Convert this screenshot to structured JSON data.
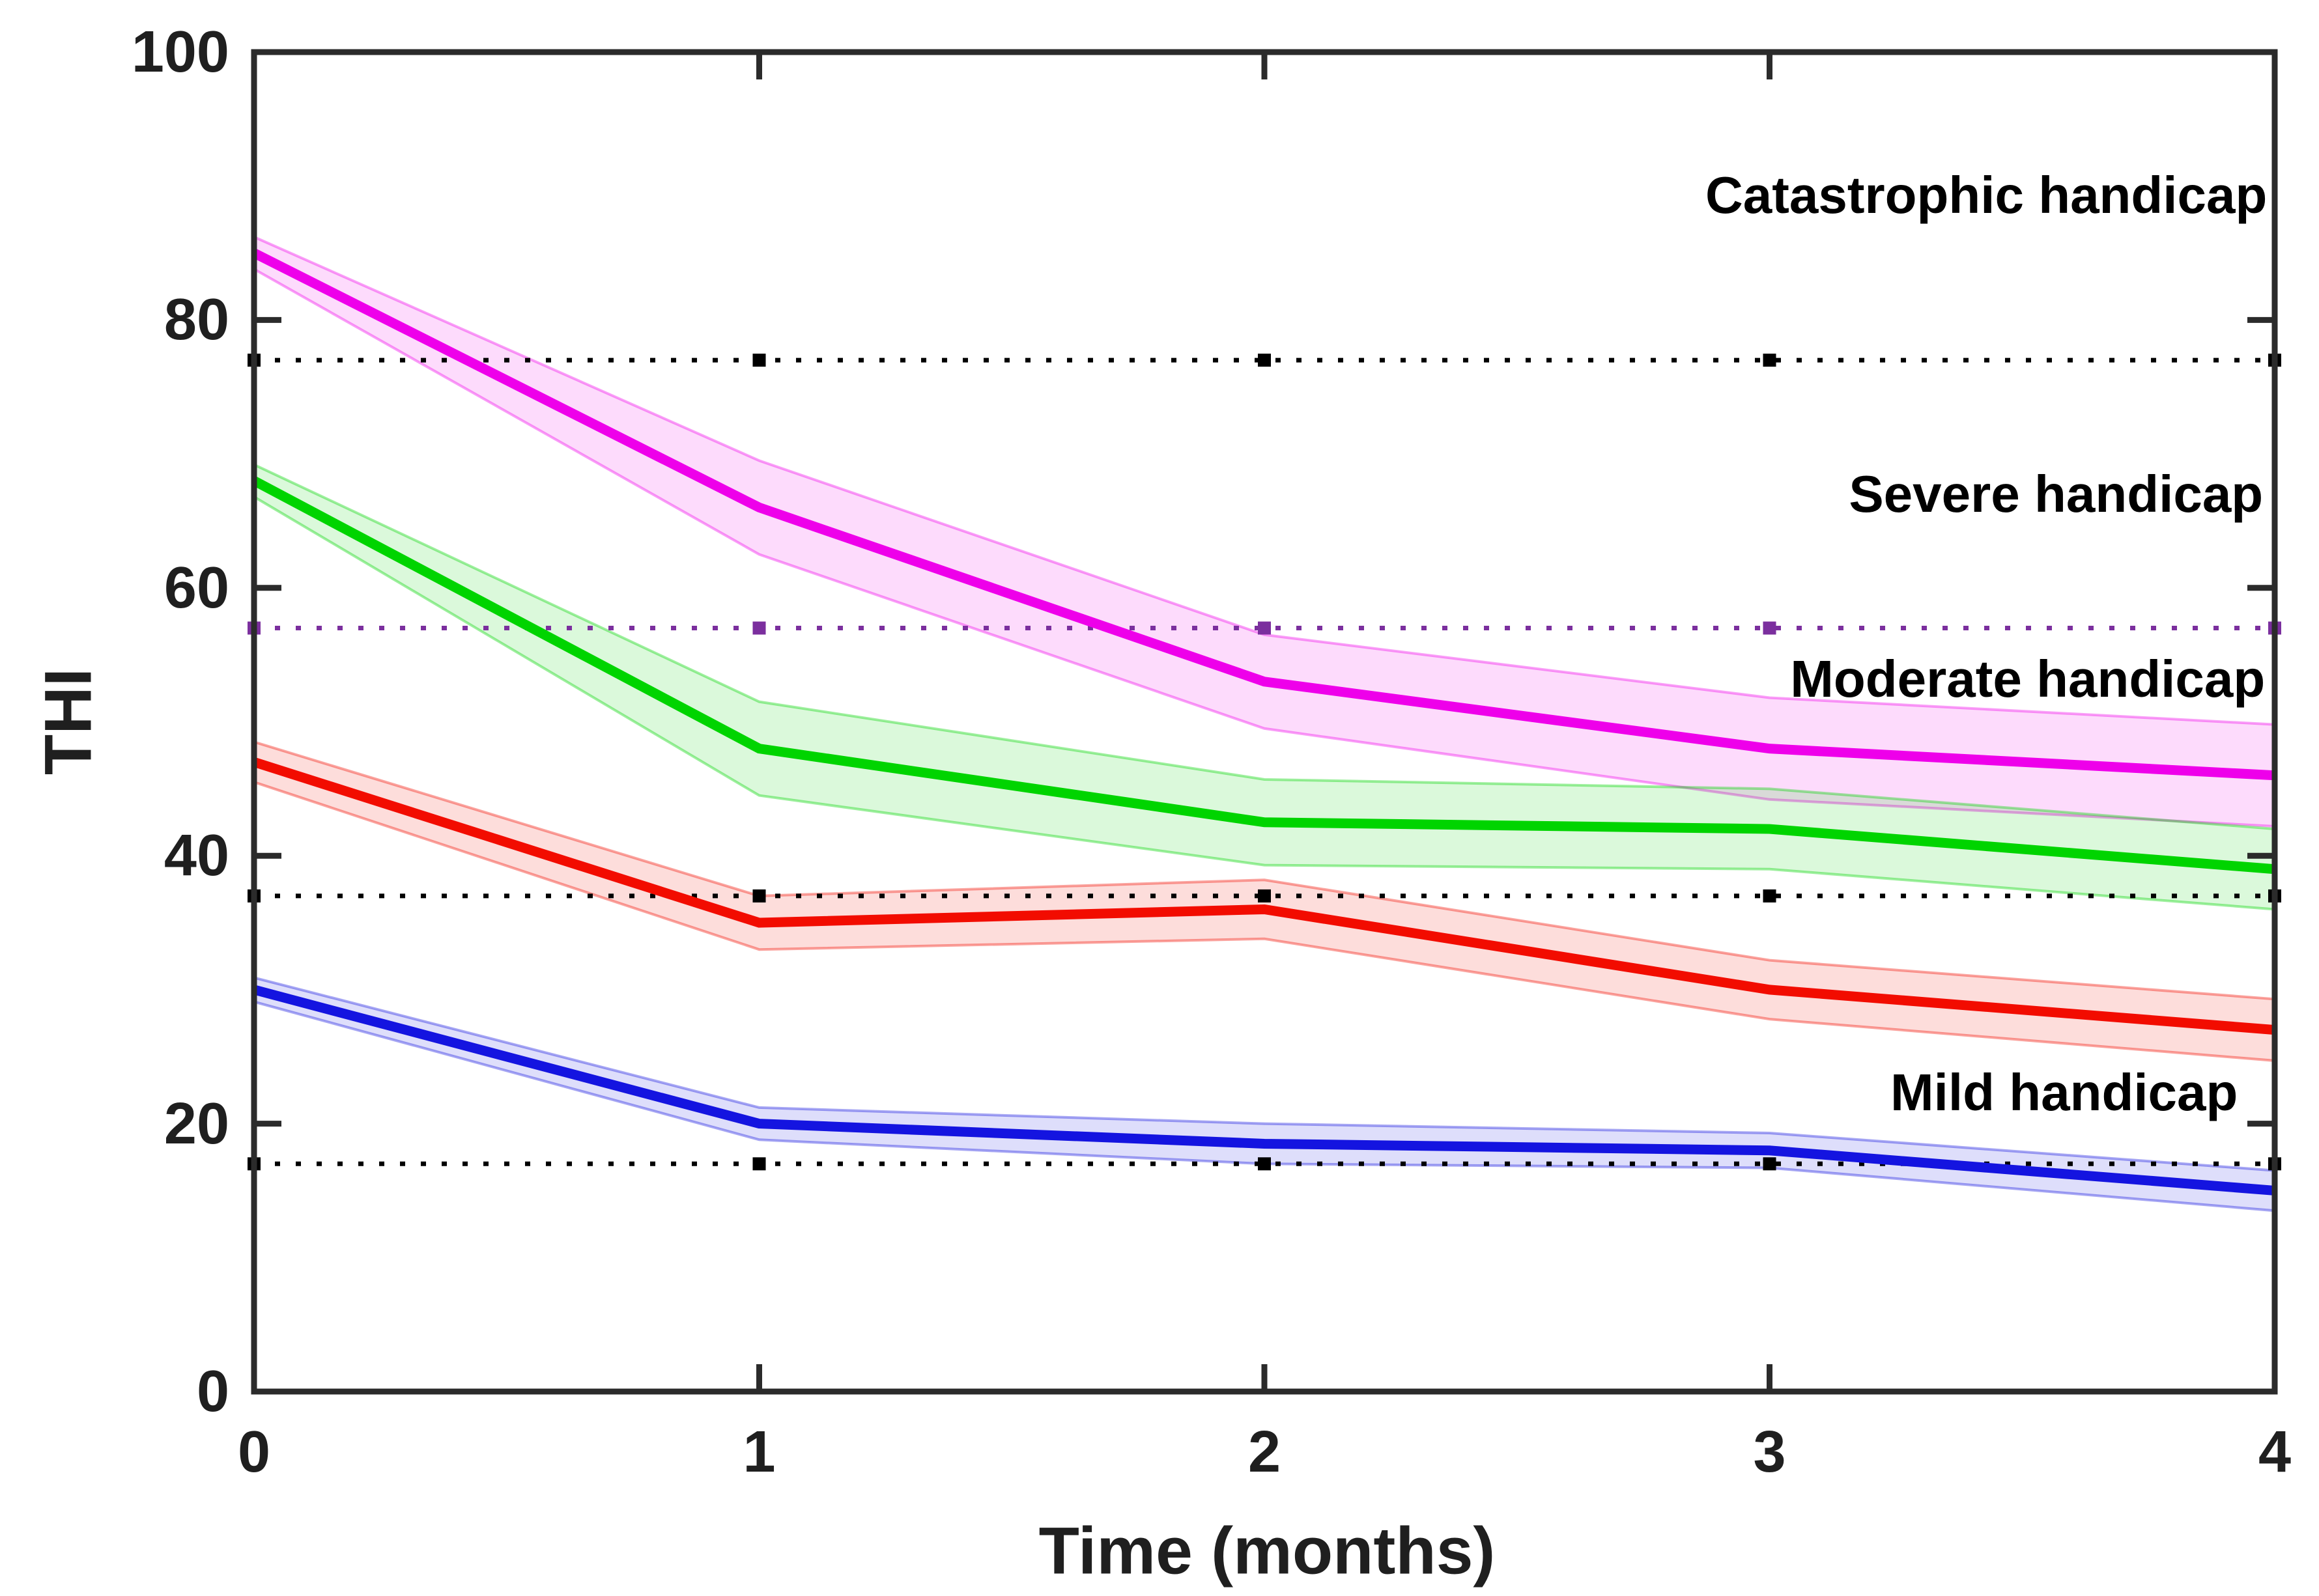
{
  "chart_data": {
    "type": "line",
    "title": "",
    "xlabel": "Time (months)",
    "ylabel": "THI",
    "xlim": [
      0,
      4
    ],
    "ylim": [
      0,
      100
    ],
    "grid": false,
    "legend_position": "none",
    "x": [
      0,
      1,
      2,
      3,
      4
    ],
    "x_tick_labels": [
      "0",
      "1",
      "2",
      "3",
      "4"
    ],
    "y_tick_values": [
      0,
      20,
      40,
      60,
      80,
      100
    ],
    "y_tick_labels": [
      "0",
      "20",
      "40",
      "60",
      "80",
      "100"
    ],
    "series": [
      {
        "name": "Catastrophic handicap",
        "color": "#ee00ea",
        "values": [
          85,
          66,
          53,
          48,
          46
        ],
        "ci_halfwidth": [
          1.2,
          3.5,
          3.5,
          3.8,
          3.8
        ]
      },
      {
        "name": "Severe handicap",
        "color": "#00d400",
        "values": [
          68,
          48,
          42.5,
          42,
          39
        ],
        "ci_halfwidth": [
          1.2,
          3.5,
          3.2,
          3.0,
          3.0
        ]
      },
      {
        "name": "Moderate handicap",
        "color": "#f20c00",
        "values": [
          47,
          35,
          36,
          30,
          27
        ],
        "ci_halfwidth": [
          1.5,
          2.0,
          2.2,
          2.2,
          2.3
        ]
      },
      {
        "name": "Mild handicap",
        "color": "#1414e0",
        "values": [
          30,
          20,
          18.5,
          18,
          15
        ],
        "ci_halfwidth": [
          0.9,
          1.2,
          1.5,
          1.3,
          1.5
        ]
      }
    ],
    "reference_lines": [
      {
        "y": 77,
        "color": "#000000",
        "style": "dotted"
      },
      {
        "y": 57,
        "color": "#7b2f9e",
        "style": "dotted"
      },
      {
        "y": 37,
        "color": "#000000",
        "style": "dotted"
      },
      {
        "y": 17,
        "color": "#000000",
        "style": "dotted"
      }
    ],
    "annotations": [
      {
        "text": "Catastrophic handicap",
        "x": 3.985,
        "y": 89.3
      },
      {
        "text": "Severe handicap",
        "x": 3.977,
        "y": 67.0
      },
      {
        "text": "Moderate handicap",
        "x": 3.981,
        "y": 53.2
      },
      {
        "text": "Mild handicap",
        "x": 3.927,
        "y": 22.3
      }
    ],
    "axis_color": "#2b2b2b"
  }
}
